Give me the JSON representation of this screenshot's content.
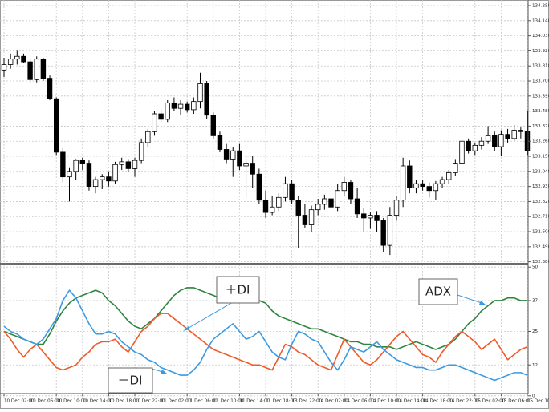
{
  "chart_data": [
    {
      "type": "candlestick",
      "up_color": "#ffffff",
      "down_color": "#000000",
      "grid": true,
      "ylim": [
        132.372,
        134.291
      ],
      "yticks": [
        {
          "value": 134.25,
          "label": "134.250"
        },
        {
          "value": 134.14,
          "label": "134.140"
        },
        {
          "value": 134.03,
          "label": "134.030"
        },
        {
          "value": 133.92,
          "label": "133.920"
        },
        {
          "value": 133.81,
          "label": "133.810"
        },
        {
          "value": 133.7,
          "label": "133.700"
        },
        {
          "value": 133.59,
          "label": "133.590"
        },
        {
          "value": 133.48,
          "label": "133.480"
        },
        {
          "value": 133.37,
          "label": "133.370"
        },
        {
          "value": 133.26,
          "label": "133.260"
        },
        {
          "value": 133.15,
          "label": "133.150"
        },
        {
          "value": 133.04,
          "label": "133.040"
        },
        {
          "value": 132.93,
          "label": "132.930"
        },
        {
          "value": 132.82,
          "label": "132.820"
        },
        {
          "value": 132.71,
          "label": "132.710"
        },
        {
          "value": 132.6,
          "label": "132.600"
        },
        {
          "value": 132.49,
          "label": "132.490"
        },
        {
          "value": 132.38,
          "label": "132.380"
        }
      ],
      "open": [
        133.78,
        133.82,
        133.86,
        133.88,
        133.84,
        133.71,
        133.86,
        133.72,
        133.57,
        133.18,
        133.0,
        133.04,
        133.12,
        133.1,
        132.93,
        132.98,
        133.0,
        132.97,
        133.09,
        133.11,
        133.06,
        133.12,
        133.25,
        133.33,
        133.46,
        133.42,
        133.54,
        133.5,
        133.53,
        133.49,
        133.55,
        133.68,
        133.45,
        133.3,
        133.2,
        133.13,
        133.19,
        133.08,
        133.1,
        133.02,
        132.83,
        132.74,
        132.78,
        132.85,
        132.95,
        132.83,
        132.72,
        132.65,
        132.76,
        132.8,
        132.84,
        132.78,
        132.9,
        132.96,
        132.84,
        132.73,
        132.7,
        132.72,
        132.68,
        132.5,
        132.72,
        132.83,
        133.08,
        132.92,
        132.95,
        132.93,
        132.9,
        132.95,
        132.98,
        133.03,
        133.1,
        133.26,
        133.19,
        133.23,
        133.26,
        133.3,
        133.22,
        133.31,
        133.28,
        133.34,
        133.33
      ],
      "high": [
        133.87,
        133.9,
        133.92,
        133.9,
        133.86,
        133.88,
        133.87,
        133.74,
        133.58,
        133.21,
        133.07,
        133.13,
        133.14,
        133.12,
        133.0,
        133.02,
        133.04,
        133.11,
        133.14,
        133.13,
        133.14,
        133.28,
        133.35,
        133.48,
        133.49,
        133.56,
        133.58,
        133.56,
        133.55,
        133.58,
        133.76,
        133.7,
        133.47,
        133.33,
        133.24,
        133.22,
        133.24,
        133.16,
        133.15,
        133.06,
        132.9,
        132.86,
        132.88,
        133.0,
        132.98,
        132.86,
        132.8,
        132.79,
        132.84,
        132.87,
        132.88,
        132.95,
        133.0,
        132.98,
        132.92,
        132.77,
        132.74,
        132.75,
        132.7,
        132.78,
        132.86,
        133.14,
        133.12,
        132.98,
        132.98,
        132.96,
        132.97,
        133.0,
        133.05,
        133.13,
        133.29,
        133.28,
        133.25,
        133.29,
        133.37,
        133.33,
        133.34,
        133.35,
        133.38,
        133.36,
        133.48
      ],
      "low": [
        133.73,
        133.79,
        133.82,
        133.83,
        133.69,
        133.69,
        133.7,
        133.56,
        133.16,
        132.96,
        132.82,
        132.98,
        133.05,
        132.9,
        132.88,
        132.91,
        132.93,
        132.95,
        133.05,
        133.04,
        133.0,
        133.1,
        133.22,
        133.3,
        133.4,
        133.4,
        133.48,
        133.45,
        133.47,
        133.46,
        133.5,
        133.42,
        133.28,
        133.18,
        133.1,
        133.0,
        133.05,
        132.85,
        132.92,
        132.8,
        132.7,
        132.72,
        132.75,
        132.82,
        132.8,
        132.48,
        132.63,
        132.6,
        132.72,
        132.76,
        132.72,
        132.75,
        132.86,
        132.8,
        132.7,
        132.6,
        132.62,
        132.6,
        132.45,
        132.43,
        132.68,
        132.78,
        132.88,
        132.88,
        132.9,
        132.85,
        132.83,
        132.92,
        132.95,
        133.01,
        133.08,
        133.17,
        133.16,
        133.2,
        133.24,
        133.19,
        133.15,
        133.25,
        133.26,
        133.28,
        133.16
      ],
      "close": [
        133.82,
        133.86,
        133.88,
        133.84,
        133.71,
        133.86,
        133.72,
        133.57,
        133.18,
        133.0,
        133.04,
        133.12,
        133.1,
        132.93,
        132.98,
        133.0,
        132.97,
        133.09,
        133.11,
        133.06,
        133.12,
        133.25,
        133.33,
        133.46,
        133.42,
        133.54,
        133.5,
        133.53,
        133.49,
        133.55,
        133.68,
        133.45,
        133.3,
        133.2,
        133.13,
        133.19,
        133.08,
        133.1,
        133.02,
        132.83,
        132.74,
        132.78,
        132.85,
        132.95,
        132.83,
        132.72,
        132.65,
        132.76,
        132.8,
        132.84,
        132.78,
        132.9,
        132.96,
        132.84,
        132.73,
        132.7,
        132.72,
        132.68,
        132.5,
        132.72,
        132.83,
        133.08,
        132.92,
        132.95,
        132.93,
        132.9,
        132.95,
        132.98,
        133.03,
        133.1,
        133.26,
        133.19,
        133.23,
        133.26,
        133.3,
        133.22,
        133.31,
        133.28,
        133.34,
        133.33,
        133.19
      ]
    },
    {
      "type": "line",
      "grid": true,
      "categories": [
        "10 Dec 02:00",
        null,
        null,
        null,
        "10 Dec 06:00",
        null,
        null,
        null,
        "10 Dec 10:00",
        null,
        null,
        null,
        "10 Dec 14:00",
        null,
        null,
        null,
        "10 Dec 18:00",
        null,
        null,
        null,
        "10 Dec 22:00",
        null,
        null,
        null,
        "11 Dec 02:00",
        null,
        null,
        null,
        "11 Dec 06:00",
        null,
        null,
        null,
        "11 Dec 10:00",
        null,
        null,
        null,
        "11 Dec 14:00",
        null,
        null,
        null,
        "11 Dec 18:00",
        null,
        null,
        null,
        "13 Dec 22:00",
        null,
        null,
        null,
        "14 Dec 02:00",
        null,
        null,
        null,
        "14 Dec 06:00",
        null,
        null,
        null,
        "14 Dec 10:00",
        null,
        null,
        null,
        "14 Dec 14:00",
        null,
        null,
        null,
        "14 Dec 18:00",
        null,
        null,
        null,
        "14 Dec 22:00",
        null,
        null,
        null,
        "15 Dec 02:00",
        null,
        null,
        null,
        "15 Dec 06:00",
        null,
        null,
        null,
        "15 Dec 10:00"
      ],
      "ylim": [
        -1,
        51
      ],
      "yticks": [
        50,
        37,
        25,
        12,
        0
      ],
      "series": [
        {
          "name": "ADX",
          "color": "#2e8540",
          "values": [
            25,
            24,
            23,
            22,
            21,
            20,
            20,
            24,
            29,
            33,
            36,
            38,
            39,
            40,
            41,
            40,
            37,
            35,
            32,
            29,
            27,
            26,
            28,
            30,
            33,
            36,
            39,
            41,
            42,
            42,
            41,
            40,
            39,
            38,
            38,
            38,
            38,
            38,
            37,
            37,
            36,
            33,
            31,
            30,
            29,
            28,
            27,
            26,
            26,
            25,
            24,
            23,
            22,
            21,
            21,
            20,
            20,
            19,
            19,
            19,
            18,
            19,
            20,
            21,
            20,
            19,
            18,
            19,
            20,
            22,
            25,
            28,
            30,
            33,
            35,
            37,
            37,
            38,
            38,
            37,
            37
          ]
        },
        {
          "name": "＋DI",
          "color": "#f05a28",
          "values": [
            25,
            22,
            18,
            15,
            18,
            20,
            17,
            14,
            11,
            10,
            11,
            12,
            15,
            17,
            20,
            21,
            21,
            22,
            19,
            17,
            21,
            25,
            27,
            30,
            32,
            32,
            30,
            28,
            26,
            24,
            22,
            20,
            18,
            17,
            16,
            15,
            14,
            13,
            12,
            12,
            11,
            10,
            15,
            20,
            19,
            17,
            16,
            14,
            12,
            11,
            10,
            16,
            22,
            19,
            16,
            13,
            12,
            14,
            17,
            20,
            23,
            25,
            22,
            19,
            16,
            15,
            13,
            17,
            20,
            23,
            25,
            23,
            21,
            18,
            20,
            22,
            18,
            14,
            16,
            18,
            19
          ]
        },
        {
          "name": "－DI",
          "color": "#3b9ae1",
          "values": [
            27,
            25,
            24,
            22,
            21,
            20,
            22,
            26,
            30,
            37,
            41,
            38,
            33,
            28,
            24,
            24,
            25,
            24,
            21,
            19,
            17,
            16,
            14,
            13,
            11,
            10,
            9,
            8,
            8,
            10,
            13,
            18,
            22,
            24,
            26,
            28,
            25,
            22,
            23,
            25,
            21,
            17,
            15,
            14,
            20,
            25,
            24,
            22,
            21,
            17,
            13,
            10,
            14,
            19,
            18,
            17,
            19,
            21,
            18,
            16,
            14,
            13,
            12,
            11,
            11,
            10,
            10,
            11,
            12,
            12,
            11,
            10,
            9,
            8,
            7,
            6,
            7,
            8,
            9,
            9,
            8
          ]
        }
      ]
    }
  ]
}
